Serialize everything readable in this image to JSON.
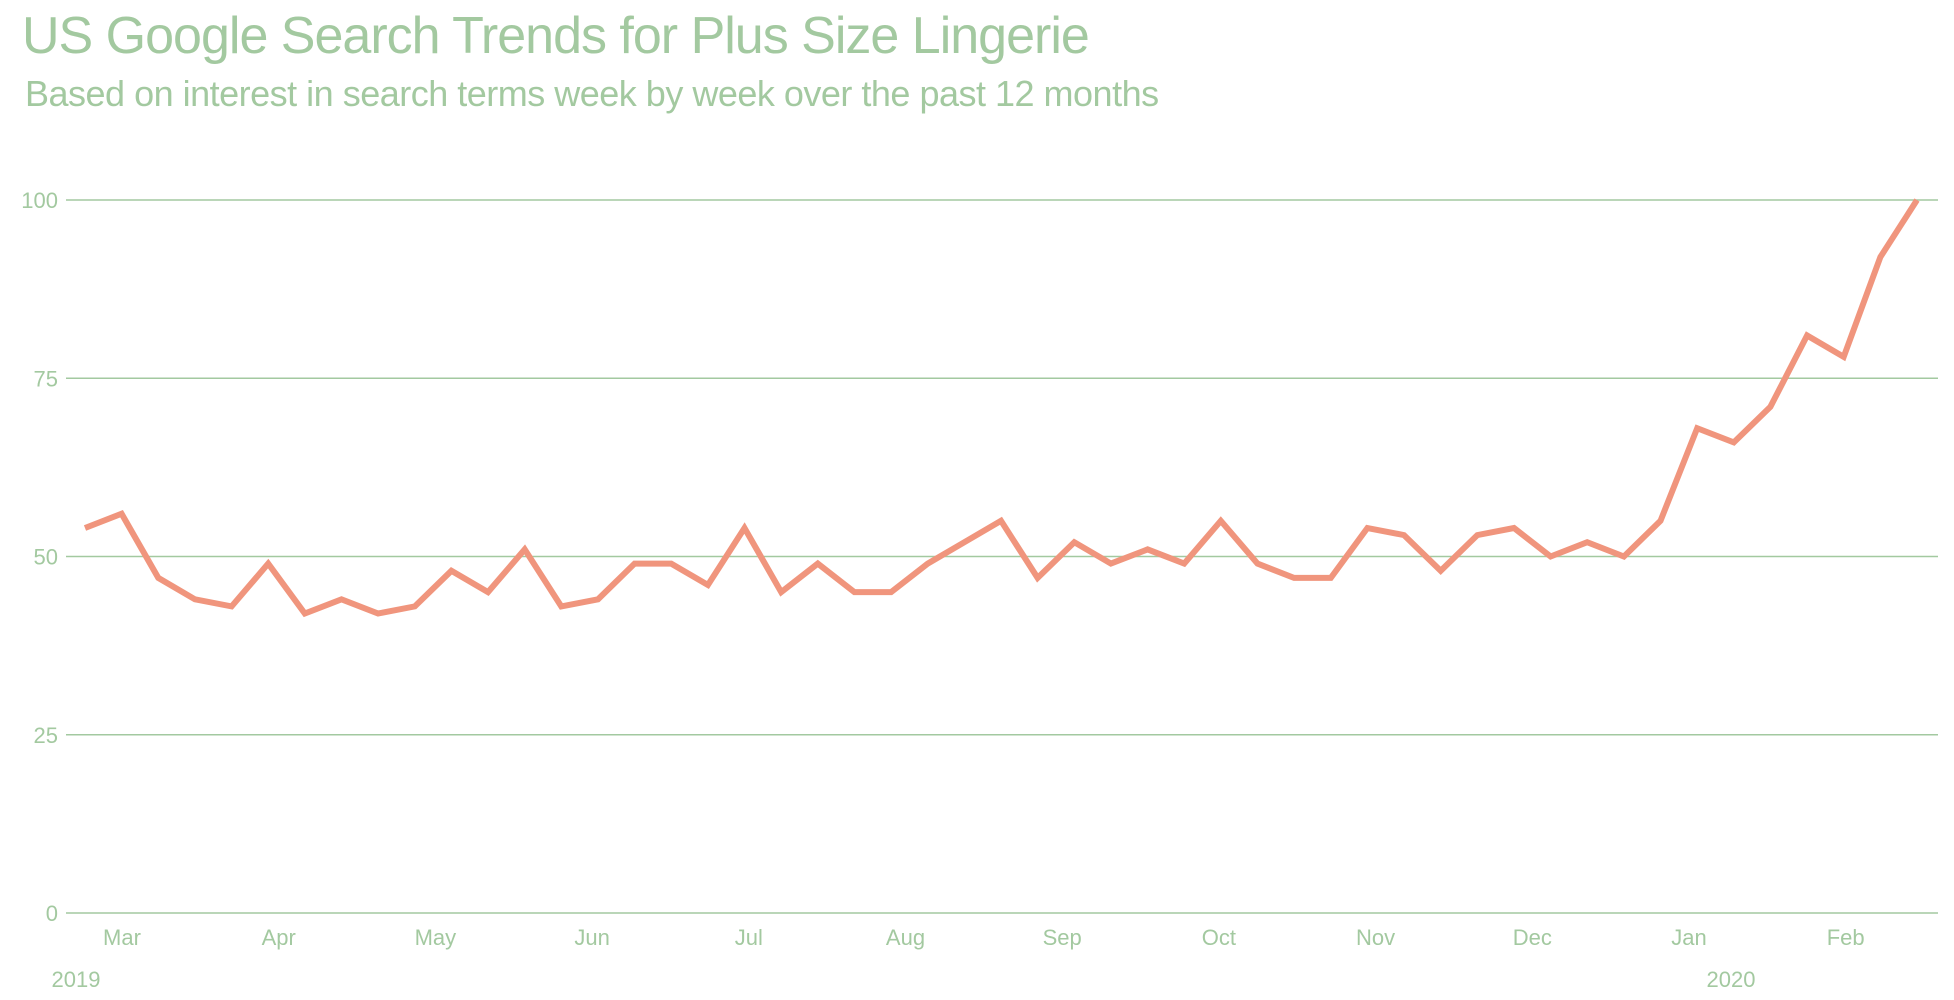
{
  "title": "US Google Search Trends for Plus Size Lingerie",
  "subtitle": "Based on interest in search terms week by week over the past 12 months",
  "colors": {
    "text": "#a3c9a0",
    "grid": "#a3c9a0",
    "line": "#f0957d"
  },
  "chart_data": {
    "type": "line",
    "title": "US Google Search Trends for Plus Size Lingerie",
    "subtitle": "Based on interest in search terms week by week over the past 12 months",
    "xlabel": "",
    "ylabel": "",
    "ylim": [
      0,
      100
    ],
    "yticks": [
      0,
      25,
      50,
      75,
      100
    ],
    "grid": "horizontal",
    "x_tick_labels": [
      "Mar",
      "Apr",
      "May",
      "Jun",
      "Jul",
      "Aug",
      "Sep",
      "Oct",
      "Nov",
      "Dec",
      "Jan",
      "Feb"
    ],
    "year_labels": [
      "2019",
      "2020"
    ],
    "series": [
      {
        "values": [
          54,
          56,
          47,
          44,
          43,
          49,
          42,
          44,
          42,
          43,
          48,
          45,
          51,
          43,
          44,
          49,
          49,
          46,
          54,
          45,
          49,
          45,
          45,
          49,
          52,
          55,
          47,
          52,
          49,
          51,
          49,
          55,
          49,
          47,
          47,
          54,
          53,
          48,
          53,
          54,
          50,
          52,
          50,
          55,
          68,
          66,
          71,
          81,
          78,
          92,
          100
        ]
      }
    ]
  }
}
